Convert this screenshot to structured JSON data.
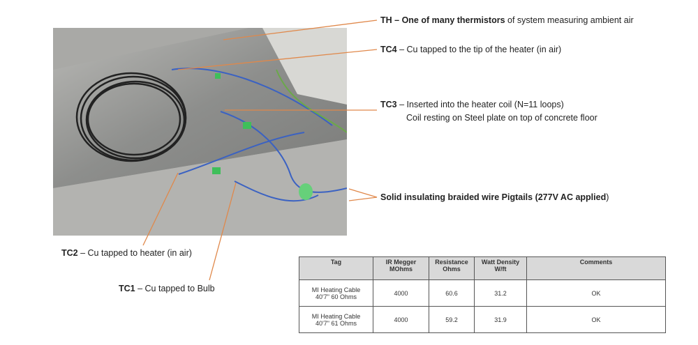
{
  "annotations": {
    "th": {
      "tag": "TH",
      "bold": " – One of many thermistors",
      "text": " of system measuring ambient air"
    },
    "tc4": {
      "tag": "TC4",
      "text": " – Cu tapped to the tip of the heater (in air)"
    },
    "tc3": {
      "tag": "TC3",
      "text": " – Inserted into the heater coil (N=11 loops)",
      "line2": "Coil resting on Steel plate on top of concrete floor"
    },
    "pigtails": {
      "bold": "Solid insulating braided wire Pigtails (277V AC applied",
      "text": ")"
    },
    "tc2": {
      "tag": "TC2",
      "text": " – Cu tapped to heater (in air)"
    },
    "tc1": {
      "tag": "TC1",
      "text": " – Cu tapped to Bulb"
    }
  },
  "colors": {
    "leader_line": "#e0884a",
    "header_bg": "#d9d9d9"
  },
  "table": {
    "headers": [
      [
        "Tag",
        ""
      ],
      [
        "IR Megger",
        "MOhms"
      ],
      [
        "Resistance",
        "Ohms"
      ],
      [
        "Watt Density",
        "W/ft"
      ],
      [
        "Comments",
        ""
      ]
    ],
    "rows": [
      {
        "tag1": "MI Heating Cable",
        "tag2": "40'7\"  60 Ohms",
        "ir": "4000",
        "res": "60.6",
        "watt": "31.2",
        "comment": "OK"
      },
      {
        "tag1": "MI Heating Cable",
        "tag2": "40'7\"  61 Ohms",
        "ir": "4000",
        "res": "59.2",
        "watt": "31.9",
        "comment": "OK"
      }
    ]
  }
}
